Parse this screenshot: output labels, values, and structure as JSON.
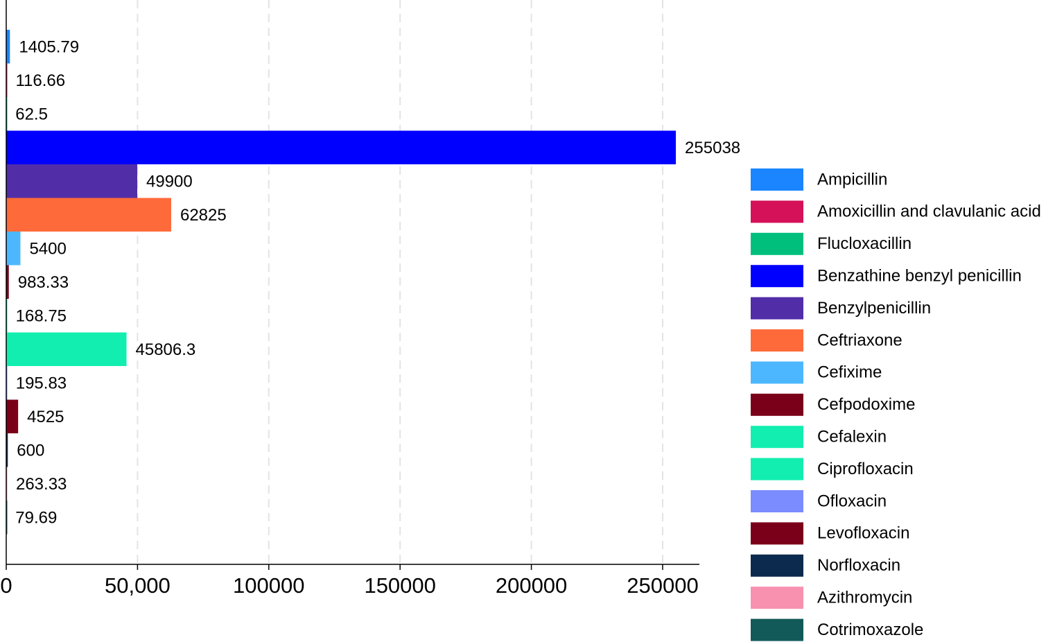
{
  "chart_data": {
    "type": "bar",
    "orientation": "horizontal",
    "categories": [
      "Ampicillin",
      "Amoxicillin and clavulanic acid",
      "Flucloxacillin",
      "Benzathine benzyl penicillin",
      "Benzylpenicillin",
      "Ceftriaxone",
      "Cefixime",
      "Cefpodoxime",
      "Cefalexin",
      "Ciprofloxacin",
      "Ofloxacin",
      "Levofloxacin",
      "Norfloxacin",
      "Azithromycin",
      "Cotrimoxazole"
    ],
    "values": [
      1405.79,
      116.66,
      62.5,
      255038,
      49900,
      62825,
      5400,
      983.33,
      168.75,
      45806.3,
      195.83,
      4525,
      600,
      263.33,
      79.69
    ],
    "colors": [
      "#1a85ff",
      "#d41159",
      "#00bf7d",
      "#0000ff",
      "#512da8",
      "#ff6a3a",
      "#4cb7ff",
      "#7a0019",
      "#12eeb0",
      "#12eeb0",
      "#7a8cff",
      "#7a0019",
      "#0c2a4e",
      "#f891b0",
      "#125a5a"
    ],
    "xlim": [
      0,
      264000
    ],
    "xticks": [
      0,
      {
        "value": 50000,
        "label": "50,000"
      },
      100000,
      150000,
      200000,
      250000
    ],
    "grid": true,
    "legend": "right"
  }
}
